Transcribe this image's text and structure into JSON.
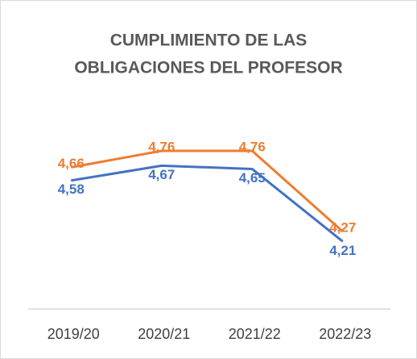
{
  "chart_data": {
    "type": "line",
    "title": [
      "CUMPLIMIENTO DE LAS",
      "OBLIGACIONES DEL PROFESOR"
    ],
    "categories": [
      "2019/20",
      "2020/21",
      "2021/22",
      "2022/23"
    ],
    "series": [
      {
        "color": "#ed7d31",
        "values": [
          4.66,
          4.76,
          4.76,
          4.27
        ],
        "value_labels": [
          "4,66",
          "4,76",
          "4,76",
          "4,27"
        ]
      },
      {
        "color": "#4472c4",
        "values": [
          4.58,
          4.67,
          4.65,
          4.21
        ],
        "value_labels": [
          "4,58",
          "4,67",
          "4,65",
          "4,21"
        ]
      }
    ],
    "ylim": [
      3.8,
      5.0
    ]
  }
}
